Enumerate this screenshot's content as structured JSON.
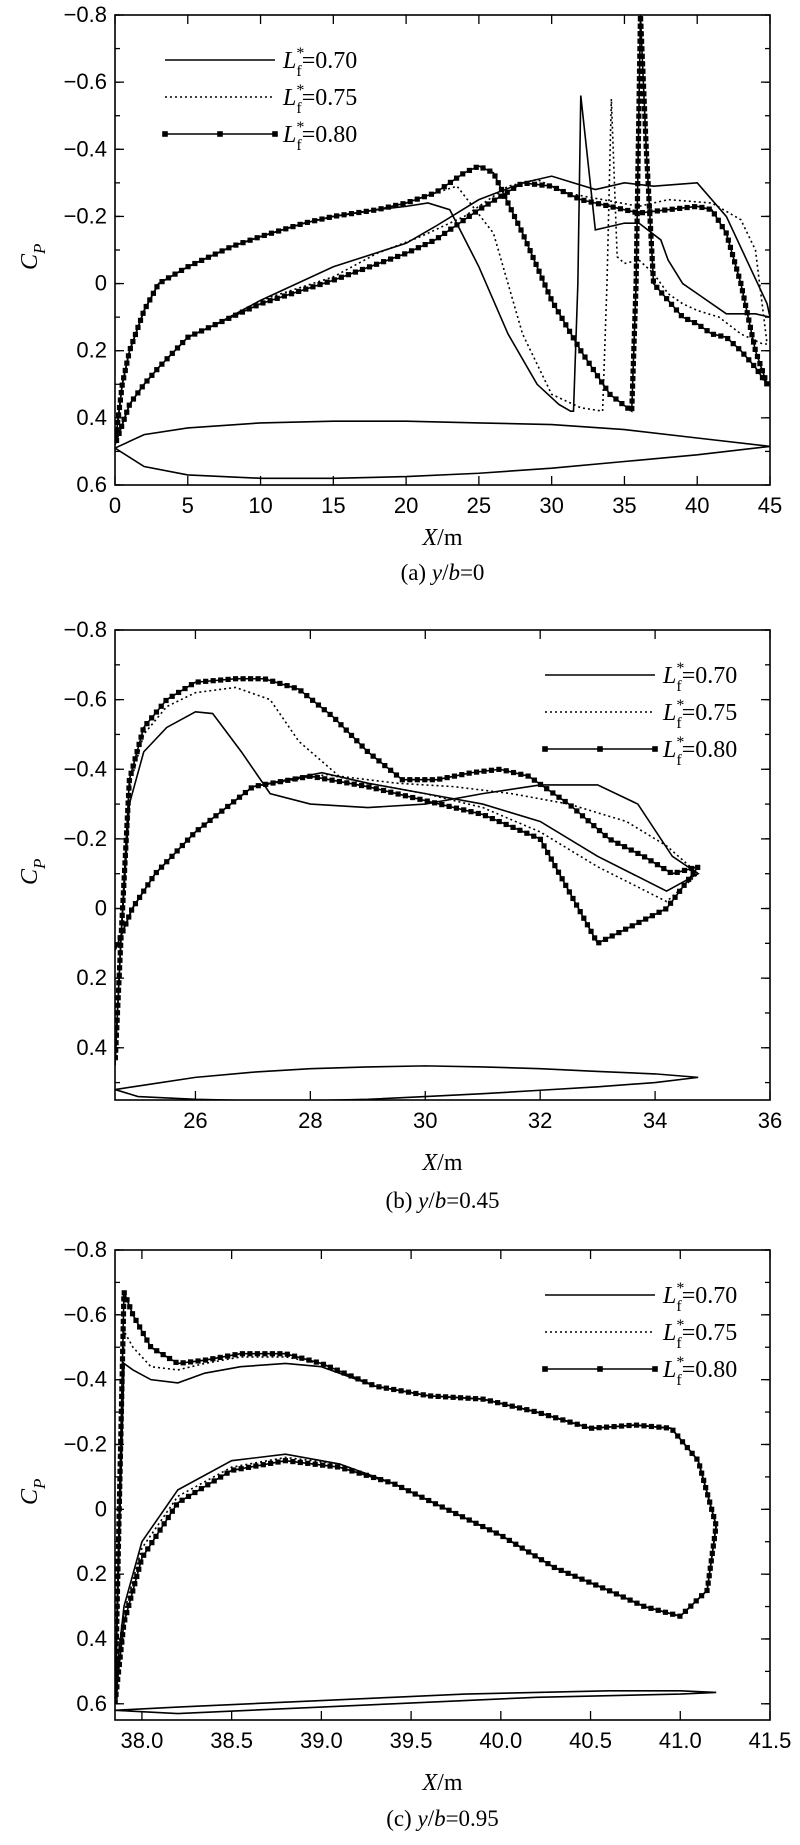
{
  "chart_data": [
    {
      "type": "line",
      "caption": "(a) y/b=0",
      "ylabel": "C_P",
      "xlabel": "X/m",
      "xlim": [
        0,
        45
      ],
      "ylim": [
        0.6,
        -0.8
      ],
      "x_ticks": [
        "0",
        "5",
        "10",
        "15",
        "20",
        "25",
        "30",
        "35",
        "40",
        "45"
      ],
      "y_ticks": [
        "−0.8",
        "−0.6",
        "−0.4",
        "−0.2",
        "0",
        "0.2",
        "0.4",
        "0.6"
      ],
      "legend": {
        "placement": "top-left",
        "entries": [
          {
            "base": "L",
            "sup": "*",
            "sub": "f",
            "value": "=0.70",
            "style": "solid"
          },
          {
            "base": "L",
            "sup": "*",
            "sub": "f",
            "value": "=0.75",
            "style": "dotted"
          },
          {
            "base": "L",
            "sup": "*",
            "sub": "f",
            "value": "=0.80",
            "style": "square-markers"
          }
        ]
      },
      "series": [
        {
          "name": "L*f=0.70",
          "style": "solid",
          "x": [
            0,
            0.5,
            1,
            2,
            3,
            5,
            8,
            10,
            13,
            15,
            18,
            20,
            21.5,
            23,
            25,
            27,
            29,
            30.5,
            31.3,
            31.5,
            31.8,
            32,
            33,
            35,
            36,
            37.5,
            38,
            39,
            40,
            42,
            44,
            45,
            44.8,
            42,
            40,
            37,
            35,
            33,
            31.5,
            30,
            28,
            25,
            22,
            20,
            15,
            10,
            7,
            5,
            3,
            2,
            1,
            0.5,
            0
          ],
          "y": [
            0.48,
            0.3,
            0.2,
            0.08,
            0.0,
            -0.05,
            -0.11,
            -0.14,
            -0.18,
            -0.2,
            -0.22,
            -0.23,
            -0.24,
            -0.22,
            -0.05,
            0.15,
            0.3,
            0.36,
            0.38,
            0.38,
            0.0,
            -0.56,
            -0.16,
            -0.18,
            -0.18,
            -0.13,
            -0.07,
            0.0,
            0.03,
            0.09,
            0.09,
            0.1,
            0.06,
            -0.2,
            -0.3,
            -0.29,
            -0.3,
            -0.28,
            -0.3,
            -0.32,
            -0.3,
            -0.25,
            -0.17,
            -0.12,
            -0.05,
            0.05,
            0.12,
            0.16,
            0.25,
            0.3,
            0.36,
            0.42,
            0.48
          ]
        },
        {
          "name": "L*f=0.75",
          "style": "dotted",
          "x": [
            0,
            0.5,
            1,
            2,
            3,
            5,
            8,
            10,
            13,
            15,
            18,
            20,
            22,
            23.5,
            26,
            28,
            30,
            32,
            33.5,
            33.8,
            34.1,
            34.5,
            35,
            36,
            37,
            38,
            39,
            40,
            41.5,
            43,
            44.5,
            44.8,
            44,
            43,
            41,
            38,
            36,
            33.5,
            31,
            29,
            27,
            24,
            21,
            18,
            15,
            10,
            7,
            5,
            3,
            2,
            1,
            0.5,
            0
          ],
          "y": [
            0.48,
            0.3,
            0.2,
            0.08,
            0.0,
            -0.05,
            -0.11,
            -0.14,
            -0.18,
            -0.2,
            -0.22,
            -0.24,
            -0.27,
            -0.29,
            -0.15,
            0.15,
            0.33,
            0.37,
            0.38,
            0.0,
            -0.55,
            -0.08,
            -0.06,
            -0.07,
            -0.03,
            0.03,
            0.06,
            0.08,
            0.1,
            0.15,
            0.18,
            0.18,
            -0.1,
            -0.19,
            -0.24,
            -0.25,
            -0.23,
            -0.25,
            -0.27,
            -0.31,
            -0.29,
            -0.2,
            -0.14,
            -0.09,
            -0.02,
            0.05,
            0.12,
            0.16,
            0.25,
            0.3,
            0.36,
            0.42,
            0.48
          ]
        },
        {
          "name": "L*f=0.80",
          "style": "square-markers",
          "x": [
            0,
            0.5,
            1,
            2,
            3,
            5,
            8,
            10,
            13,
            15,
            18,
            20,
            22,
            24,
            25,
            26,
            28,
            30,
            32,
            34,
            35.5,
            35.8,
            36.1,
            36.5,
            37,
            38,
            39,
            40,
            41,
            42,
            43,
            44,
            44.8,
            44,
            43,
            42,
            41,
            40,
            38,
            36,
            34,
            32,
            30,
            28,
            25,
            22,
            20,
            15,
            10,
            7,
            5,
            3,
            2,
            1,
            0.5,
            0
          ],
          "y": [
            0.48,
            0.3,
            0.2,
            0.08,
            0.0,
            -0.05,
            -0.11,
            -0.14,
            -0.18,
            -0.2,
            -0.22,
            -0.24,
            -0.27,
            -0.33,
            -0.35,
            -0.33,
            -0.15,
            0.05,
            0.2,
            0.33,
            0.38,
            0.0,
            -0.8,
            -0.4,
            0.0,
            0.05,
            0.1,
            0.12,
            0.15,
            0.16,
            0.2,
            0.25,
            0.3,
            0.2,
            0.0,
            -0.15,
            -0.22,
            -0.23,
            -0.22,
            -0.21,
            -0.23,
            -0.25,
            -0.29,
            -0.3,
            -0.22,
            -0.13,
            -0.09,
            -0.01,
            0.06,
            0.12,
            0.16,
            0.25,
            0.3,
            0.36,
            0.42,
            0.48
          ]
        }
      ],
      "airfoil": {
        "x": [
          0,
          2,
          5,
          10,
          15,
          20,
          25,
          30,
          35,
          40,
          45,
          40,
          35,
          30,
          25,
          20,
          15,
          10,
          5,
          2,
          0
        ],
        "y": [
          0.49,
          0.45,
          0.43,
          0.415,
          0.41,
          0.41,
          0.415,
          0.42,
          0.435,
          0.46,
          0.485,
          0.51,
          0.53,
          0.55,
          0.565,
          0.575,
          0.58,
          0.58,
          0.57,
          0.545,
          0.49
        ]
      }
    },
    {
      "type": "line",
      "caption": "(b) y/b=0.45",
      "ylabel": "C_P",
      "xlabel": "X/m",
      "xlim": [
        24.6,
        36
      ],
      "ylim": [
        0.55,
        -0.8
      ],
      "x_ticks": [
        "26",
        "28",
        "30",
        "32",
        "34",
        "36"
      ],
      "y_ticks": [
        "−0.8",
        "−0.6",
        "−0.4",
        "−0.2",
        "0",
        "0.2",
        "0.4"
      ],
      "legend": {
        "placement": "top-right",
        "entries": [
          {
            "base": "L",
            "sup": "*",
            "sub": "f",
            "value": "=0.70",
            "style": "solid"
          },
          {
            "base": "L",
            "sup": "*",
            "sub": "f",
            "value": "=0.75",
            "style": "dotted"
          },
          {
            "base": "L",
            "sup": "*",
            "sub": "f",
            "value": "=0.80",
            "style": "square-markers"
          }
        ]
      },
      "series": [
        {
          "name": "L*f=0.70",
          "style": "solid",
          "x": [
            24.6,
            24.7,
            24.85,
            25.1,
            25.5,
            26,
            26.3,
            26.8,
            27.3,
            28,
            29,
            30,
            31,
            32,
            33,
            33.7,
            34.3,
            34.75,
            34.2,
            33,
            32,
            31,
            30,
            29,
            28.2,
            27,
            26,
            25.3,
            24.9,
            24.7,
            24.6
          ],
          "y": [
            0.45,
            0.1,
            -0.3,
            -0.45,
            -0.52,
            -0.565,
            -0.56,
            -0.45,
            -0.33,
            -0.3,
            -0.29,
            -0.3,
            -0.33,
            -0.355,
            -0.355,
            -0.3,
            -0.15,
            -0.1,
            -0.05,
            -0.15,
            -0.25,
            -0.3,
            -0.33,
            -0.36,
            -0.39,
            -0.35,
            -0.22,
            -0.1,
            0.0,
            0.08,
            0.12
          ]
        },
        {
          "name": "L*f=0.75",
          "style": "dotted",
          "x": [
            24.6,
            24.7,
            24.85,
            25.1,
            25.5,
            26,
            26.7,
            27.3,
            27.8,
            28.5,
            29.5,
            30.5,
            31.5,
            32.5,
            33.5,
            34.2,
            34.75,
            34.2,
            33,
            32,
            31,
            30,
            29,
            28.3,
            27,
            26,
            25.3,
            24.9,
            24.7,
            24.6
          ],
          "y": [
            0.45,
            0.1,
            -0.35,
            -0.5,
            -0.58,
            -0.62,
            -0.635,
            -0.6,
            -0.48,
            -0.38,
            -0.36,
            -0.35,
            -0.33,
            -0.3,
            -0.25,
            -0.18,
            -0.1,
            -0.02,
            -0.12,
            -0.22,
            -0.29,
            -0.33,
            -0.36,
            -0.385,
            -0.35,
            -0.22,
            -0.1,
            0.0,
            0.08,
            0.12
          ]
        },
        {
          "name": "L*f=0.80",
          "style": "square-markers",
          "x": [
            24.6,
            24.7,
            24.85,
            25.1,
            25.5,
            26,
            26.7,
            27.2,
            27.8,
            28.4,
            29,
            29.6,
            30.2,
            30.8,
            31.3,
            31.8,
            32.5,
            33.2,
            33.8,
            34.3,
            34.75,
            34.2,
            33,
            32,
            31,
            30,
            29,
            28,
            27,
            26,
            25.3,
            24.9,
            24.7,
            24.6
          ],
          "y": [
            0.45,
            0.1,
            -0.37,
            -0.52,
            -0.6,
            -0.65,
            -0.66,
            -0.66,
            -0.63,
            -0.55,
            -0.45,
            -0.37,
            -0.37,
            -0.39,
            -0.4,
            -0.38,
            -0.3,
            -0.2,
            -0.15,
            -0.1,
            -0.12,
            0.0,
            0.1,
            -0.2,
            -0.27,
            -0.31,
            -0.35,
            -0.38,
            -0.35,
            -0.22,
            -0.1,
            0.0,
            0.08,
            0.12
          ]
        }
      ],
      "airfoil": {
        "x": [
          24.6,
          25,
          26,
          27,
          28,
          29,
          30,
          31,
          32,
          33,
          34,
          34.75,
          34,
          33,
          32,
          31,
          30,
          29,
          28,
          27,
          26,
          25,
          24.6
        ],
        "y": [
          0.52,
          0.51,
          0.485,
          0.47,
          0.46,
          0.455,
          0.452,
          0.455,
          0.46,
          0.468,
          0.475,
          0.485,
          0.5,
          0.512,
          0.522,
          0.532,
          0.54,
          0.548,
          0.552,
          0.552,
          0.548,
          0.54,
          0.52
        ]
      }
    },
    {
      "type": "line",
      "caption": "(c) y/b=0.95",
      "ylabel": "C_P",
      "xlabel": "X/m",
      "xlim": [
        37.85,
        41.5
      ],
      "ylim": [
        0.65,
        -0.8
      ],
      "x_ticks": [
        "38.0",
        "38.5",
        "39.0",
        "39.5",
        "40.0",
        "40.5",
        "41.0",
        "41.5"
      ],
      "y_ticks": [
        "−0.8",
        "−0.6",
        "−0.4",
        "−0.2",
        "0",
        "0.2",
        "0.4",
        "0.6"
      ],
      "legend": {
        "placement": "top-right",
        "entries": [
          {
            "base": "L",
            "sup": "*",
            "sub": "f",
            "value": "=0.70",
            "style": "solid"
          },
          {
            "base": "L",
            "sup": "*",
            "sub": "f",
            "value": "=0.75",
            "style": "dotted"
          },
          {
            "base": "L",
            "sup": "*",
            "sub": "f",
            "value": "=0.80",
            "style": "square-markers"
          }
        ]
      },
      "series": [
        {
          "name": "L*f=0.70",
          "style": "solid",
          "x": [
            37.85,
            37.9,
            37.95,
            38.05,
            38.2,
            38.35,
            38.55,
            38.8,
            39.0,
            39.3,
            39.6,
            39.9,
            40.2,
            40.5,
            40.75,
            40.95,
            41.1,
            41.2,
            41.15,
            41.0,
            40.8,
            40.6,
            40.3,
            40.0,
            39.7,
            39.4,
            39.1,
            38.8,
            38.5,
            38.2,
            38.0,
            37.9,
            37.85
          ],
          "y": [
            0.6,
            -0.45,
            -0.43,
            -0.4,
            -0.39,
            -0.42,
            -0.44,
            -0.45,
            -0.44,
            -0.38,
            -0.35,
            -0.34,
            -0.3,
            -0.25,
            -0.26,
            -0.25,
            -0.15,
            0.05,
            0.25,
            0.33,
            0.3,
            0.25,
            0.18,
            0.08,
            0.0,
            -0.08,
            -0.14,
            -0.17,
            -0.15,
            -0.06,
            0.1,
            0.3,
            0.55
          ]
        },
        {
          "name": "L*f=0.75",
          "style": "dotted",
          "x": [
            37.85,
            37.9,
            37.95,
            38.05,
            38.2,
            38.35,
            38.55,
            38.8,
            39.0,
            39.3,
            39.6,
            39.9,
            40.2,
            40.5,
            40.75,
            40.95,
            41.1,
            41.2,
            41.15,
            41.0,
            40.8,
            40.6,
            40.3,
            40.0,
            39.7,
            39.4,
            39.1,
            38.8,
            38.5,
            38.2,
            38.0,
            37.9,
            37.85
          ],
          "y": [
            0.6,
            -0.55,
            -0.5,
            -0.44,
            -0.43,
            -0.45,
            -0.47,
            -0.47,
            -0.45,
            -0.38,
            -0.35,
            -0.34,
            -0.3,
            -0.25,
            -0.26,
            -0.25,
            -0.15,
            0.05,
            0.25,
            0.33,
            0.3,
            0.25,
            0.18,
            0.08,
            0.0,
            -0.08,
            -0.14,
            -0.16,
            -0.13,
            -0.04,
            0.12,
            0.32,
            0.57
          ]
        },
        {
          "name": "L*f=0.80",
          "style": "square-markers",
          "x": [
            37.85,
            37.9,
            37.95,
            38.05,
            38.2,
            38.35,
            38.55,
            38.8,
            39.0,
            39.3,
            39.6,
            39.9,
            40.2,
            40.5,
            40.75,
            40.95,
            41.1,
            41.2,
            41.15,
            41.0,
            40.8,
            40.6,
            40.3,
            40.0,
            39.7,
            39.4,
            39.1,
            38.8,
            38.5,
            38.2,
            38.0,
            37.9,
            37.85
          ],
          "y": [
            0.6,
            -0.67,
            -0.6,
            -0.5,
            -0.45,
            -0.46,
            -0.48,
            -0.48,
            -0.45,
            -0.38,
            -0.35,
            -0.34,
            -0.3,
            -0.25,
            -0.26,
            -0.25,
            -0.15,
            0.05,
            0.25,
            0.33,
            0.3,
            0.25,
            0.18,
            0.08,
            0.0,
            -0.08,
            -0.13,
            -0.15,
            -0.12,
            -0.02,
            0.15,
            0.35,
            0.6
          ]
        }
      ],
      "airfoil": {
        "x": [
          37.85,
          38.2,
          38.6,
          39.0,
          39.4,
          39.8,
          40.2,
          40.6,
          41.0,
          41.2,
          41.0,
          40.6,
          40.2,
          39.8,
          39.4,
          39.0,
          38.6,
          38.2,
          37.85
        ],
        "y": [
          0.62,
          0.61,
          0.6,
          0.59,
          0.58,
          0.57,
          0.565,
          0.56,
          0.56,
          0.565,
          0.57,
          0.575,
          0.58,
          0.59,
          0.6,
          0.61,
          0.62,
          0.63,
          0.62
        ]
      }
    }
  ]
}
